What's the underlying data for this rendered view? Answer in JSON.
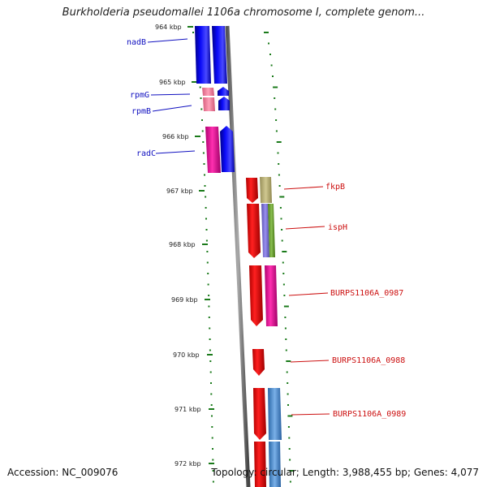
{
  "title": "Burkholderia pseudomallei 1106a chromosome I, complete genom...",
  "footer": {
    "accession": "Accession: NC_009076",
    "summary": "Topology: circular; Length: 3,988,455 bp; Genes: 4,077"
  },
  "colors": {
    "backbone": "#7a7a7a",
    "tick": "#1a7a1a",
    "left_label": "#1010c0",
    "right_label": "#cc1010",
    "blue": "#0a0af0",
    "pink": "#f080a0",
    "magenta": "#ee1199",
    "red": "#ee0000",
    "olive": "#b8b070",
    "purple": "#7a70d0",
    "green": "#6a9a30",
    "steel": "#4a88c8"
  },
  "kbp_labels": [
    "964 kbp",
    "965 kbp",
    "966 kbp",
    "967 kbp",
    "968 kbp",
    "969 kbp",
    "970 kbp",
    "971 kbp",
    "972 kbp"
  ],
  "left_genes": [
    {
      "name": "nadB",
      "kbp_start": 963.9,
      "kbp_end": 964.9
    },
    {
      "name": "rpmG",
      "kbp_start": 965.1,
      "kbp_end": 965.3
    },
    {
      "name": "rpmB",
      "kbp_start": 965.3,
      "kbp_end": 965.5
    },
    {
      "name": "radC",
      "kbp_start": 965.8,
      "kbp_end": 966.7
    }
  ],
  "right_genes": [
    {
      "name": "fkpB",
      "kbp_start": 966.9,
      "kbp_end": 967.3
    },
    {
      "name": "ispH",
      "kbp_start": 967.3,
      "kbp_end": 968.3
    },
    {
      "name": "BURPS1106A_0987",
      "kbp_start": 968.4,
      "kbp_end": 969.5
    },
    {
      "name": "BURPS1106A_0988",
      "kbp_start": 969.9,
      "kbp_end": 970.4
    },
    {
      "name": "BURPS1106A_0989",
      "kbp_start": 970.9,
      "kbp_end": 971.9
    }
  ]
}
